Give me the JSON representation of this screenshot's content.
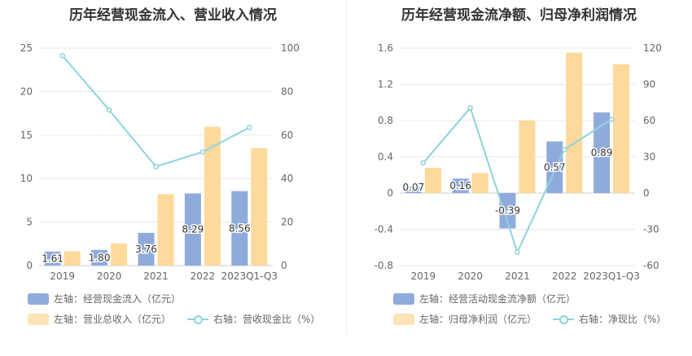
{
  "chart_data": [
    {
      "type": "bar",
      "title": "历年经营现金流入、营业收入情况",
      "categories": [
        "2019",
        "2020",
        "2021",
        "2022",
        "2023Q1-Q3"
      ],
      "left_axis": {
        "ticks": [
          "0",
          "5",
          "10",
          "15",
          "20",
          "25"
        ],
        "ylim": [
          0,
          25
        ]
      },
      "right_axis": {
        "ticks": [
          "0",
          "20",
          "40",
          "60",
          "80",
          "100"
        ],
        "ylim": [
          0,
          100
        ]
      },
      "series": [
        {
          "name": "左轴：经营现金流入（亿元）",
          "axis": "left",
          "kind": "bar",
          "color": "#8fabdc",
          "values": [
            1.61,
            1.8,
            3.76,
            8.29,
            8.56
          ],
          "labels": [
            "1.61",
            "1.80",
            "3.76",
            "8.29",
            "8.56"
          ]
        },
        {
          "name": "左轴：营业总收入（亿元）",
          "axis": "left",
          "kind": "bar",
          "color": "#fdd99b",
          "values": [
            1.65,
            2.55,
            8.2,
            15.95,
            13.5
          ]
        },
        {
          "name": "右轴：营收现金比（%）",
          "axis": "right",
          "kind": "line",
          "color": "#8dd3dc",
          "values": [
            96.5,
            71.5,
            45.5,
            52.2,
            63.5
          ]
        }
      ]
    },
    {
      "type": "bar",
      "title": "历年经营现金流净额、归母净利润情况",
      "categories": [
        "2019",
        "2020",
        "2021",
        "2022",
        "2023Q1-Q3"
      ],
      "left_axis": {
        "ticks": [
          "-0.8",
          "-0.4",
          "0",
          "0.4",
          "0.8",
          "1.2",
          "1.6"
        ],
        "ylim": [
          -0.8,
          1.6
        ]
      },
      "right_axis": {
        "ticks": [
          "-60",
          "-30",
          "0",
          "30",
          "60",
          "90",
          "120"
        ],
        "ylim": [
          -60,
          120
        ]
      },
      "series": [
        {
          "name": "左轴：经营活动现金流净额（亿元）",
          "axis": "left",
          "kind": "bar",
          "color": "#8fabdc",
          "values": [
            0.07,
            0.16,
            -0.39,
            0.57,
            0.89
          ],
          "labels": [
            "0.07",
            "0.16",
            "-0.39",
            "0.57",
            "0.89"
          ]
        },
        {
          "name": "左轴：归母净利润（亿元）",
          "axis": "left",
          "kind": "bar",
          "color": "#fdd99b",
          "values": [
            0.28,
            0.22,
            0.8,
            1.55,
            1.42
          ]
        },
        {
          "name": "右轴：净现比（%）",
          "axis": "right",
          "kind": "line",
          "color": "#8dd3dc",
          "values": [
            25,
            70.5,
            -49,
            36,
            61
          ]
        }
      ]
    }
  ]
}
